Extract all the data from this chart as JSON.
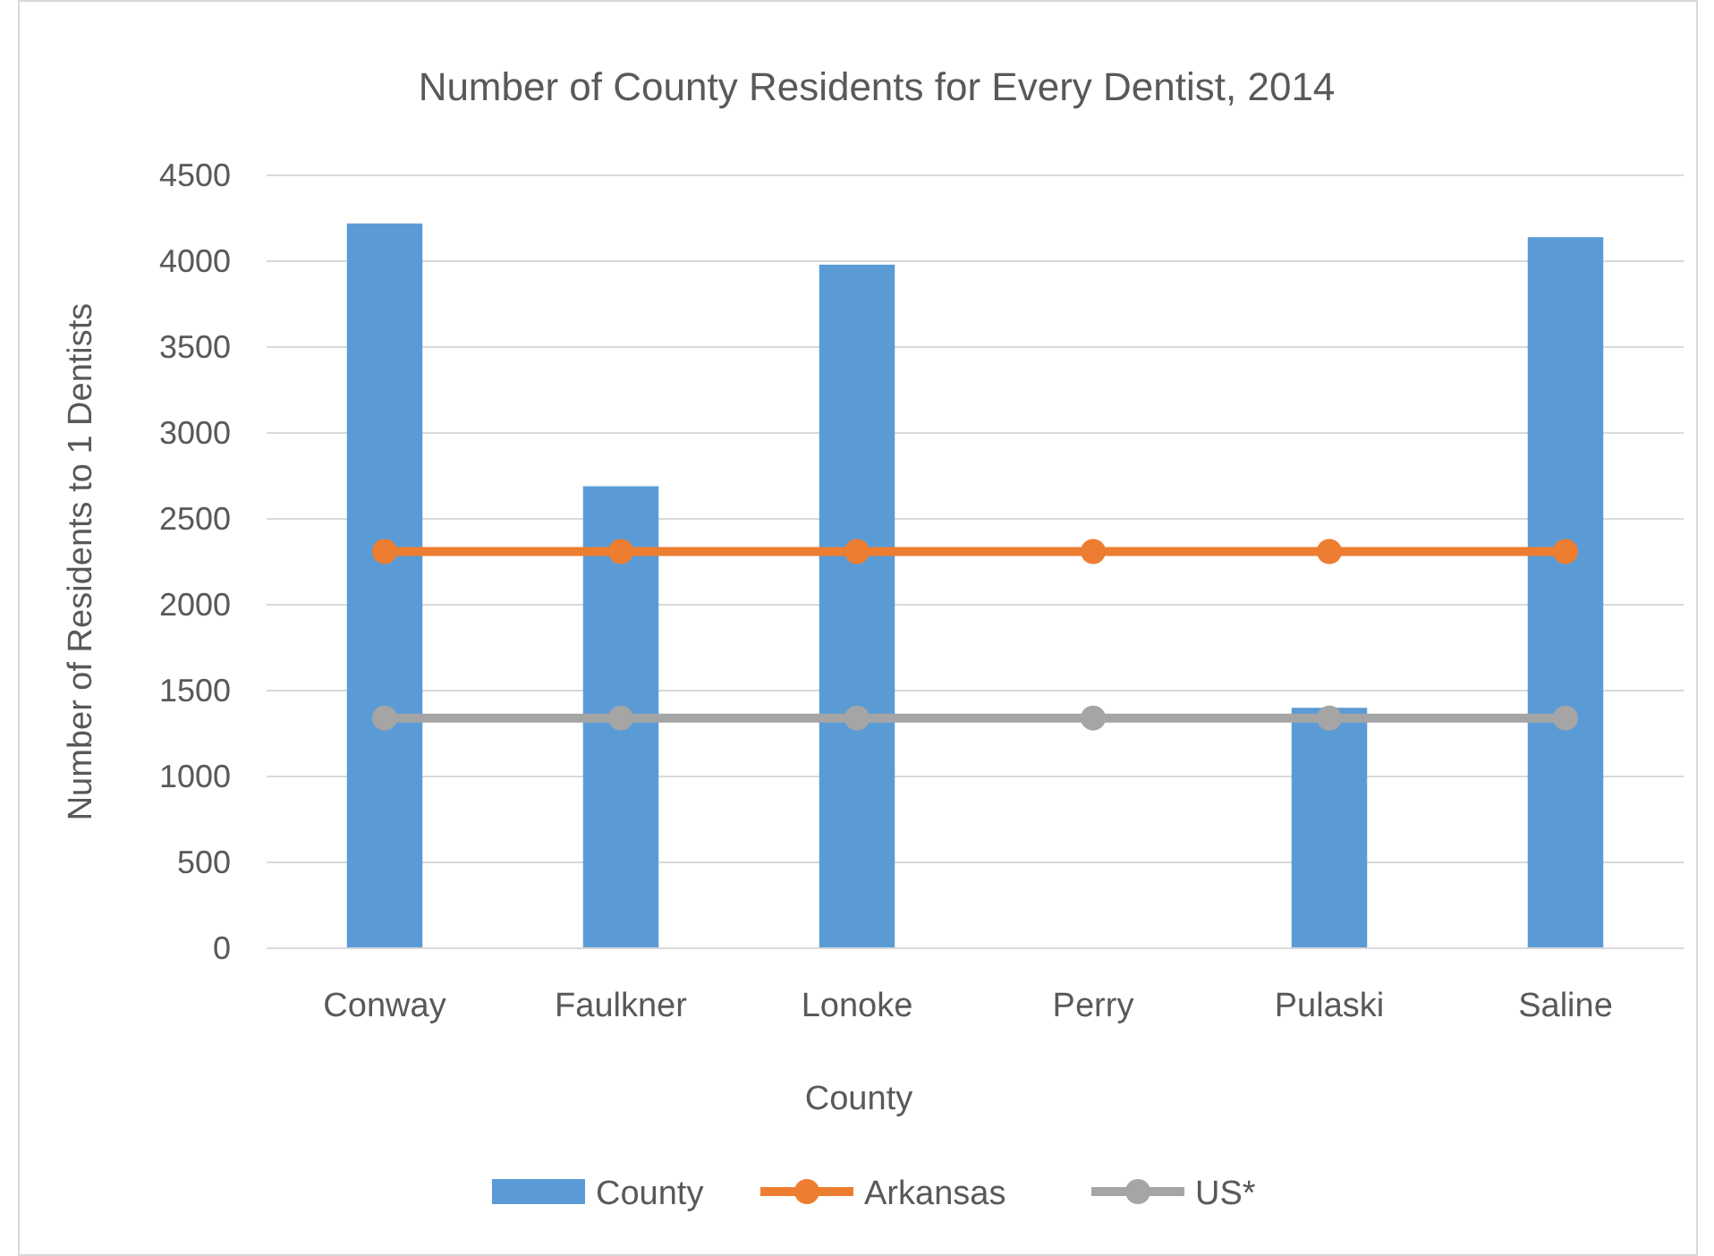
{
  "chart_data": {
    "type": "bar",
    "title": "Number of County Residents for Every  Dentist, 2014",
    "xlabel": "County",
    "ylabel": "Number of  Residents to 1 Dentists",
    "categories": [
      "Conway",
      "Faulkner",
      "Lonoke",
      "Perry",
      "Pulaski",
      "Saline"
    ],
    "series": [
      {
        "name": "County",
        "color": "#5b9bd5",
        "values": [
          4220,
          2690,
          3980,
          null,
          1400,
          4140
        ]
      },
      {
        "name": "Arkansas",
        "type": "line",
        "color": "#ed7d31",
        "values": [
          2310,
          2310,
          2310,
          2310,
          2310,
          2310
        ]
      },
      {
        "name": "US*",
        "type": "line",
        "color": "#a5a5a5",
        "values": [
          1340,
          1340,
          1340,
          1340,
          1340,
          1340
        ]
      }
    ],
    "ylim": [
      0,
      4500
    ],
    "yticks": [
      0,
      500,
      1000,
      1500,
      2000,
      2500,
      3000,
      3500,
      4000,
      4500
    ],
    "grid": "y",
    "legend": "bottom",
    "marker": "circle",
    "line_style": "solid"
  }
}
